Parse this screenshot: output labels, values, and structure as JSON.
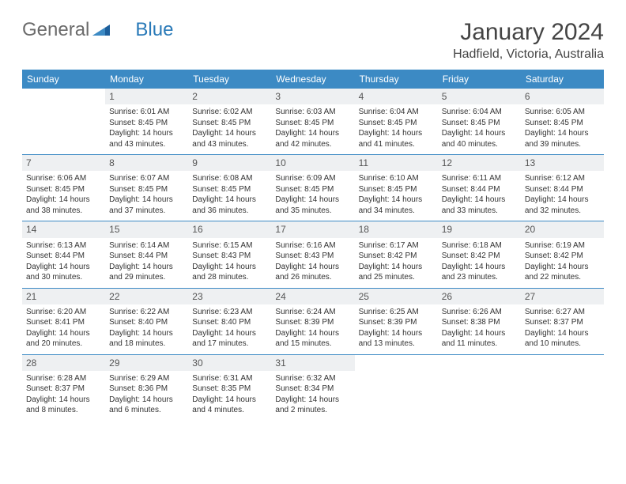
{
  "brand": {
    "part1": "General",
    "part2": "Blue"
  },
  "title": "January 2024",
  "location": "Hadfield, Victoria, Australia",
  "colors": {
    "header_bg": "#3c8ac4",
    "header_text": "#ffffff",
    "daynum_bg": "#eef0f2",
    "border": "#3c8ac4",
    "text": "#333333",
    "brand_gray": "#6b6b6b",
    "brand_blue": "#2a7ab8",
    "background": "#ffffff"
  },
  "typography": {
    "title_fontsize": 30,
    "location_fontsize": 16,
    "header_fontsize": 12,
    "daynum_fontsize": 12,
    "cell_fontsize": 10
  },
  "day_names": [
    "Sunday",
    "Monday",
    "Tuesday",
    "Wednesday",
    "Thursday",
    "Friday",
    "Saturday"
  ],
  "weeks": [
    [
      {
        "n": "",
        "sr": "",
        "ss": "",
        "dl": ""
      },
      {
        "n": "1",
        "sr": "Sunrise: 6:01 AM",
        "ss": "Sunset: 8:45 PM",
        "dl": "Daylight: 14 hours and 43 minutes."
      },
      {
        "n": "2",
        "sr": "Sunrise: 6:02 AM",
        "ss": "Sunset: 8:45 PM",
        "dl": "Daylight: 14 hours and 43 minutes."
      },
      {
        "n": "3",
        "sr": "Sunrise: 6:03 AM",
        "ss": "Sunset: 8:45 PM",
        "dl": "Daylight: 14 hours and 42 minutes."
      },
      {
        "n": "4",
        "sr": "Sunrise: 6:04 AM",
        "ss": "Sunset: 8:45 PM",
        "dl": "Daylight: 14 hours and 41 minutes."
      },
      {
        "n": "5",
        "sr": "Sunrise: 6:04 AM",
        "ss": "Sunset: 8:45 PM",
        "dl": "Daylight: 14 hours and 40 minutes."
      },
      {
        "n": "6",
        "sr": "Sunrise: 6:05 AM",
        "ss": "Sunset: 8:45 PM",
        "dl": "Daylight: 14 hours and 39 minutes."
      }
    ],
    [
      {
        "n": "7",
        "sr": "Sunrise: 6:06 AM",
        "ss": "Sunset: 8:45 PM",
        "dl": "Daylight: 14 hours and 38 minutes."
      },
      {
        "n": "8",
        "sr": "Sunrise: 6:07 AM",
        "ss": "Sunset: 8:45 PM",
        "dl": "Daylight: 14 hours and 37 minutes."
      },
      {
        "n": "9",
        "sr": "Sunrise: 6:08 AM",
        "ss": "Sunset: 8:45 PM",
        "dl": "Daylight: 14 hours and 36 minutes."
      },
      {
        "n": "10",
        "sr": "Sunrise: 6:09 AM",
        "ss": "Sunset: 8:45 PM",
        "dl": "Daylight: 14 hours and 35 minutes."
      },
      {
        "n": "11",
        "sr": "Sunrise: 6:10 AM",
        "ss": "Sunset: 8:45 PM",
        "dl": "Daylight: 14 hours and 34 minutes."
      },
      {
        "n": "12",
        "sr": "Sunrise: 6:11 AM",
        "ss": "Sunset: 8:44 PM",
        "dl": "Daylight: 14 hours and 33 minutes."
      },
      {
        "n": "13",
        "sr": "Sunrise: 6:12 AM",
        "ss": "Sunset: 8:44 PM",
        "dl": "Daylight: 14 hours and 32 minutes."
      }
    ],
    [
      {
        "n": "14",
        "sr": "Sunrise: 6:13 AM",
        "ss": "Sunset: 8:44 PM",
        "dl": "Daylight: 14 hours and 30 minutes."
      },
      {
        "n": "15",
        "sr": "Sunrise: 6:14 AM",
        "ss": "Sunset: 8:44 PM",
        "dl": "Daylight: 14 hours and 29 minutes."
      },
      {
        "n": "16",
        "sr": "Sunrise: 6:15 AM",
        "ss": "Sunset: 8:43 PM",
        "dl": "Daylight: 14 hours and 28 minutes."
      },
      {
        "n": "17",
        "sr": "Sunrise: 6:16 AM",
        "ss": "Sunset: 8:43 PM",
        "dl": "Daylight: 14 hours and 26 minutes."
      },
      {
        "n": "18",
        "sr": "Sunrise: 6:17 AM",
        "ss": "Sunset: 8:42 PM",
        "dl": "Daylight: 14 hours and 25 minutes."
      },
      {
        "n": "19",
        "sr": "Sunrise: 6:18 AM",
        "ss": "Sunset: 8:42 PM",
        "dl": "Daylight: 14 hours and 23 minutes."
      },
      {
        "n": "20",
        "sr": "Sunrise: 6:19 AM",
        "ss": "Sunset: 8:42 PM",
        "dl": "Daylight: 14 hours and 22 minutes."
      }
    ],
    [
      {
        "n": "21",
        "sr": "Sunrise: 6:20 AM",
        "ss": "Sunset: 8:41 PM",
        "dl": "Daylight: 14 hours and 20 minutes."
      },
      {
        "n": "22",
        "sr": "Sunrise: 6:22 AM",
        "ss": "Sunset: 8:40 PM",
        "dl": "Daylight: 14 hours and 18 minutes."
      },
      {
        "n": "23",
        "sr": "Sunrise: 6:23 AM",
        "ss": "Sunset: 8:40 PM",
        "dl": "Daylight: 14 hours and 17 minutes."
      },
      {
        "n": "24",
        "sr": "Sunrise: 6:24 AM",
        "ss": "Sunset: 8:39 PM",
        "dl": "Daylight: 14 hours and 15 minutes."
      },
      {
        "n": "25",
        "sr": "Sunrise: 6:25 AM",
        "ss": "Sunset: 8:39 PM",
        "dl": "Daylight: 14 hours and 13 minutes."
      },
      {
        "n": "26",
        "sr": "Sunrise: 6:26 AM",
        "ss": "Sunset: 8:38 PM",
        "dl": "Daylight: 14 hours and 11 minutes."
      },
      {
        "n": "27",
        "sr": "Sunrise: 6:27 AM",
        "ss": "Sunset: 8:37 PM",
        "dl": "Daylight: 14 hours and 10 minutes."
      }
    ],
    [
      {
        "n": "28",
        "sr": "Sunrise: 6:28 AM",
        "ss": "Sunset: 8:37 PM",
        "dl": "Daylight: 14 hours and 8 minutes."
      },
      {
        "n": "29",
        "sr": "Sunrise: 6:29 AM",
        "ss": "Sunset: 8:36 PM",
        "dl": "Daylight: 14 hours and 6 minutes."
      },
      {
        "n": "30",
        "sr": "Sunrise: 6:31 AM",
        "ss": "Sunset: 8:35 PM",
        "dl": "Daylight: 14 hours and 4 minutes."
      },
      {
        "n": "31",
        "sr": "Sunrise: 6:32 AM",
        "ss": "Sunset: 8:34 PM",
        "dl": "Daylight: 14 hours and 2 minutes."
      },
      {
        "n": "",
        "sr": "",
        "ss": "",
        "dl": ""
      },
      {
        "n": "",
        "sr": "",
        "ss": "",
        "dl": ""
      },
      {
        "n": "",
        "sr": "",
        "ss": "",
        "dl": ""
      }
    ]
  ]
}
